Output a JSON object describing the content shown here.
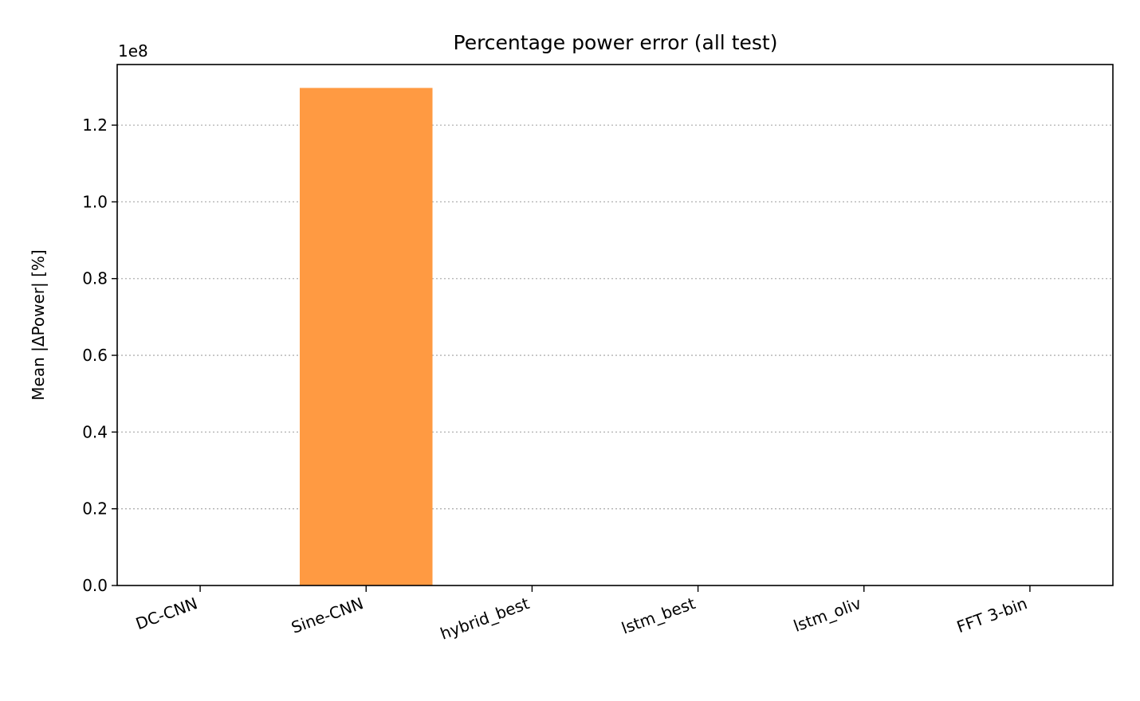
{
  "chart_data": {
    "type": "bar",
    "title": "Percentage power error (all test)",
    "xlabel": "",
    "ylabel": "Mean |ΔPower| [%]",
    "y_multiplier_label": "1e8",
    "categories": [
      "DC-CNN",
      "Sine-CNN",
      "hybrid_best",
      "lstm_best",
      "lstm_oliv",
      "FFT 3-bin"
    ],
    "values": [
      0,
      129700000,
      0,
      0,
      0,
      0
    ],
    "bar_colors": [
      "#4c72b0",
      "#ff9a42",
      "#55a868",
      "#c44e52",
      "#8172b2",
      "#937860"
    ],
    "ylim": [
      0,
      135800000
    ],
    "yticks": [
      0,
      20000000,
      40000000,
      60000000,
      80000000,
      100000000,
      120000000
    ],
    "ytick_labels": [
      "0.0",
      "0.2",
      "0.4",
      "0.6",
      "0.8",
      "1.0",
      "1.2"
    ],
    "grid": "y-dotted",
    "legend": "none"
  }
}
